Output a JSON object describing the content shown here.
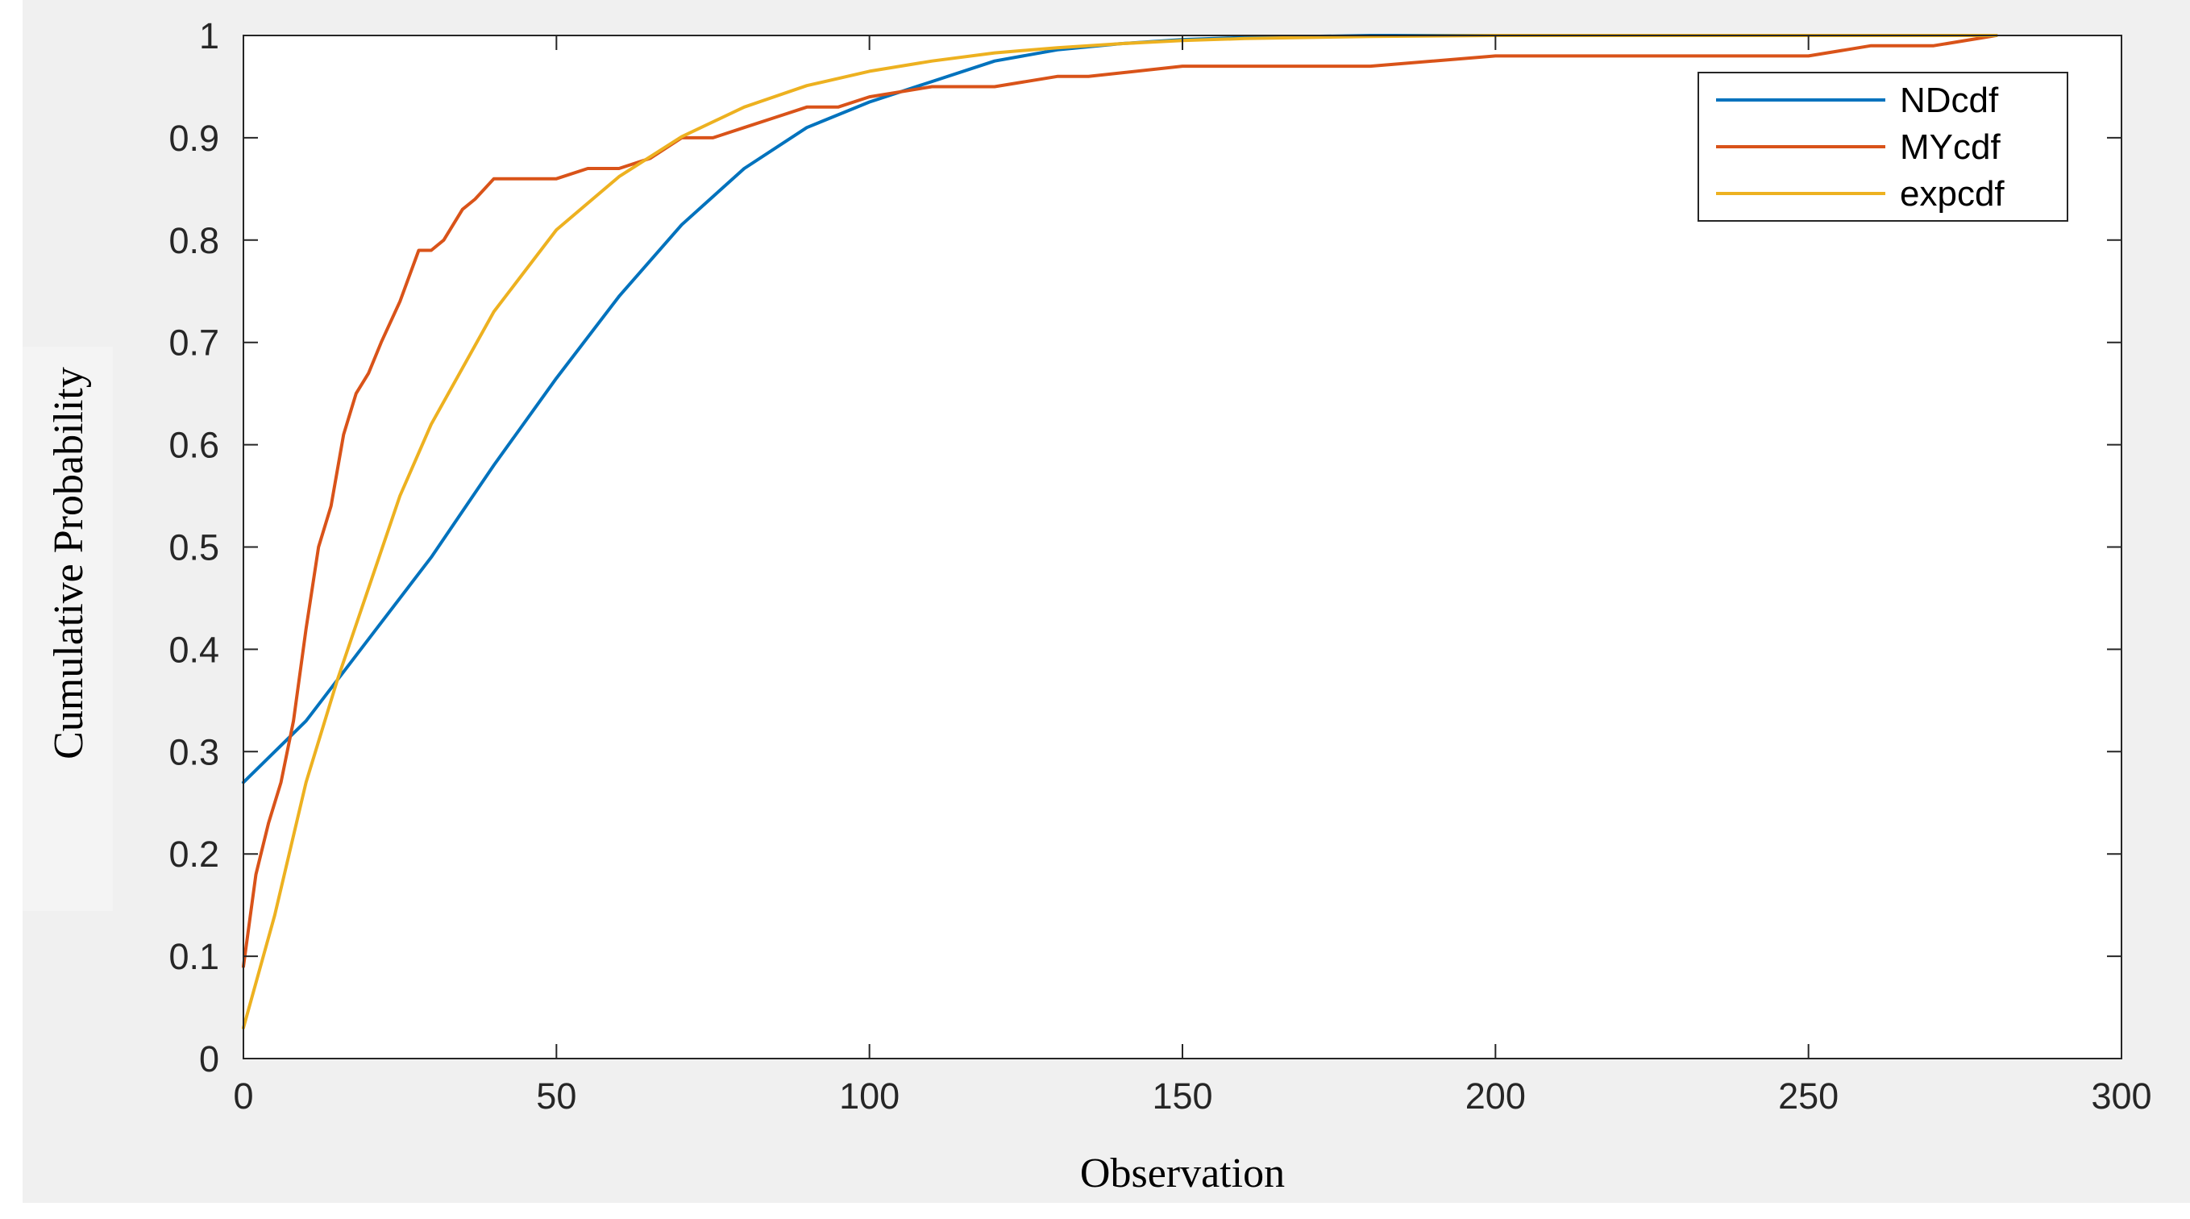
{
  "chart_data": {
    "type": "line",
    "title": "",
    "xlabel": "Observation",
    "ylabel": "Cumulative Probability",
    "xlim": [
      0,
      300
    ],
    "ylim": [
      0,
      1
    ],
    "xticks": [
      0,
      50,
      100,
      150,
      200,
      250,
      300
    ],
    "xtick_labels": [
      "0",
      "50",
      "100",
      "150",
      "200",
      "250",
      "300"
    ],
    "yticks": [
      0,
      0.1,
      0.2,
      0.3,
      0.4,
      0.5,
      0.6,
      0.7,
      0.8,
      0.9,
      1
    ],
    "ytick_labels": [
      "0",
      "0.1",
      "0.2",
      "0.3",
      "0.4",
      "0.5",
      "0.6",
      "0.7",
      "0.8",
      "0.9",
      "1"
    ],
    "grid": false,
    "legend_position": "top-right",
    "series": [
      {
        "name": "NDcdf",
        "color": "#0072BD",
        "x": [
          0,
          10,
          20,
          30,
          40,
          50,
          60,
          70,
          80,
          90,
          100,
          110,
          120,
          130,
          140,
          150,
          160,
          170,
          180,
          190,
          200,
          220,
          240,
          260,
          280
        ],
        "y": [
          0.27,
          0.33,
          0.41,
          0.49,
          0.58,
          0.665,
          0.745,
          0.815,
          0.87,
          0.91,
          0.935,
          0.955,
          0.975,
          0.986,
          0.992,
          0.996,
          0.998,
          0.999,
          1,
          1,
          1,
          1,
          1,
          1,
          1
        ]
      },
      {
        "name": "MYcdf",
        "color": "#D95319",
        "x": [
          0,
          2,
          4,
          6,
          8,
          10,
          12,
          14,
          16,
          18,
          20,
          22,
          25,
          28,
          30,
          32,
          35,
          37,
          40,
          45,
          50,
          55,
          60,
          65,
          70,
          75,
          80,
          85,
          90,
          95,
          100,
          110,
          120,
          130,
          135,
          150,
          180,
          200,
          220,
          240,
          250,
          260,
          270,
          280
        ],
        "y": [
          0.09,
          0.18,
          0.23,
          0.27,
          0.33,
          0.42,
          0.5,
          0.54,
          0.61,
          0.65,
          0.67,
          0.7,
          0.74,
          0.79,
          0.79,
          0.8,
          0.83,
          0.84,
          0.86,
          0.86,
          0.86,
          0.87,
          0.87,
          0.88,
          0.9,
          0.9,
          0.91,
          0.92,
          0.93,
          0.93,
          0.94,
          0.95,
          0.95,
          0.96,
          0.96,
          0.97,
          0.97,
          0.98,
          0.98,
          0.98,
          0.98,
          0.99,
          0.99,
          1
        ]
      },
      {
        "name": "expcdf",
        "color": "#EDB120",
        "x": [
          0,
          5,
          10,
          15,
          20,
          25,
          30,
          40,
          50,
          60,
          70,
          80,
          90,
          100,
          110,
          120,
          130,
          140,
          150,
          160,
          170,
          180,
          200,
          220,
          240,
          260,
          280
        ],
        "y": [
          0.03,
          0.14,
          0.27,
          0.37,
          0.46,
          0.55,
          0.62,
          0.73,
          0.81,
          0.862,
          0.901,
          0.93,
          0.951,
          0.965,
          0.975,
          0.983,
          0.988,
          0.992,
          0.995,
          0.997,
          0.998,
          0.999,
          1,
          1,
          1,
          1,
          1
        ]
      }
    ]
  }
}
